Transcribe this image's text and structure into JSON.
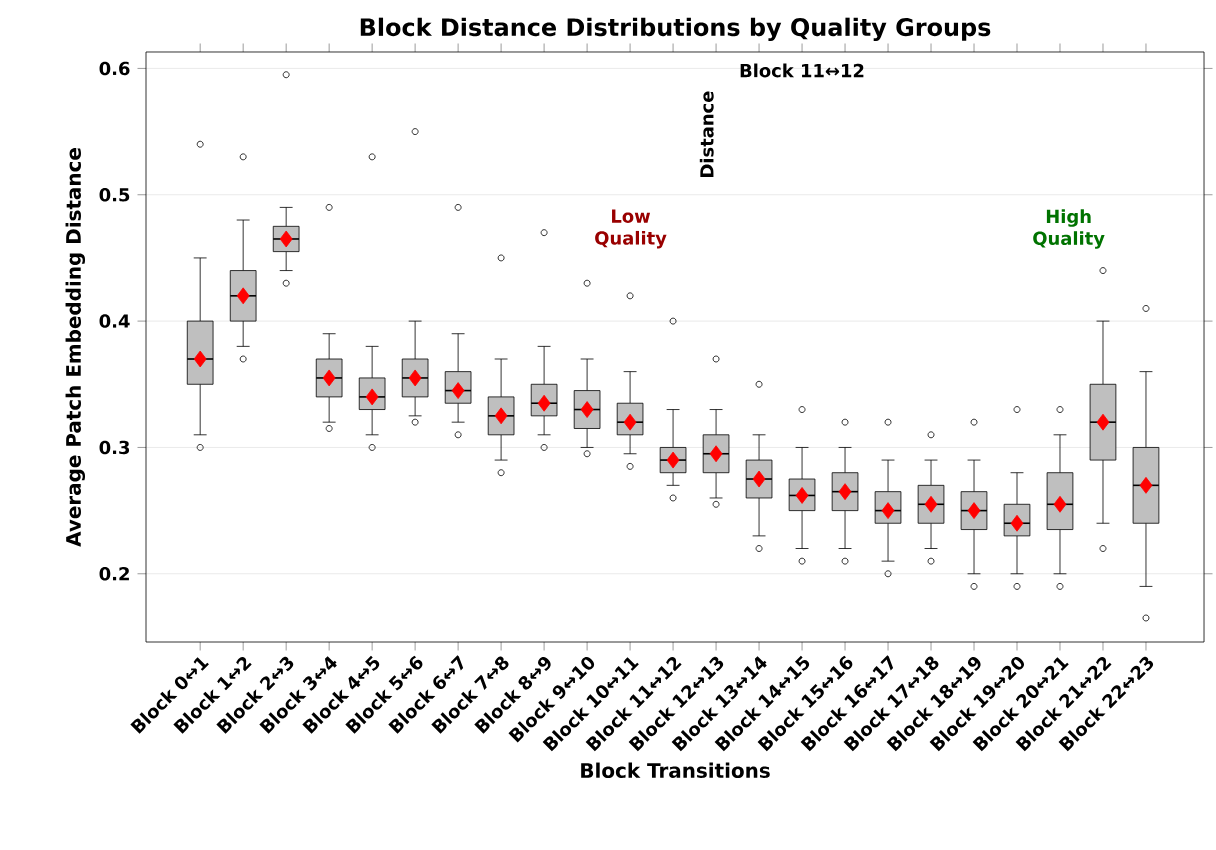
{
  "chart_data": {
    "type": "box",
    "title": "Block Distance Distributions by Quality Groups",
    "xlabel": "Block Transitions",
    "ylabel": "Average Patch Embedding Distance",
    "categories": [
      "Block 0↔1",
      "Block 1↔2",
      "Block 2↔3",
      "Block 3↔4",
      "Block 4↔5",
      "Block 5↔6",
      "Block 6↔7",
      "Block 7↔8",
      "Block 8↔9",
      "Block 9↔10",
      "Block 10↔11",
      "Block 11↔12",
      "Block 12↔13",
      "Block 13↔14",
      "Block 14↔15",
      "Block 15↔16",
      "Block 16↔17",
      "Block 17↔18",
      "Block 18↔19",
      "Block 19↔20",
      "Block 20↔21",
      "Block 21↔22",
      "Block 22↔23"
    ],
    "color": "#000000",
    "boxes": [
      {
        "low": 0.31,
        "q1": 0.35,
        "median": 0.37,
        "q3": 0.4,
        "high": 0.45,
        "mean": 0.37,
        "outliers": [
          0.54,
          0.3
        ]
      },
      {
        "low": 0.38,
        "q1": 0.4,
        "median": 0.42,
        "q3": 0.44,
        "high": 0.48,
        "mean": 0.42,
        "outliers": [
          0.53,
          0.37
        ]
      },
      {
        "low": 0.44,
        "q1": 0.455,
        "median": 0.465,
        "q3": 0.475,
        "high": 0.49,
        "mean": 0.465,
        "outliers": [
          0.595,
          0.43
        ]
      },
      {
        "low": 0.32,
        "q1": 0.34,
        "median": 0.355,
        "q3": 0.37,
        "high": 0.39,
        "mean": 0.355,
        "outliers": [
          0.49,
          0.315
        ]
      },
      {
        "low": 0.31,
        "q1": 0.33,
        "median": 0.34,
        "q3": 0.355,
        "high": 0.38,
        "mean": 0.34,
        "outliers": [
          0.53,
          0.3
        ]
      },
      {
        "low": 0.325,
        "q1": 0.34,
        "median": 0.355,
        "q3": 0.37,
        "high": 0.4,
        "mean": 0.355,
        "outliers": [
          0.55,
          0.32
        ]
      },
      {
        "low": 0.32,
        "q1": 0.335,
        "median": 0.345,
        "q3": 0.36,
        "high": 0.39,
        "mean": 0.345,
        "outliers": [
          0.49,
          0.31
        ]
      },
      {
        "low": 0.29,
        "q1": 0.31,
        "median": 0.325,
        "q3": 0.34,
        "high": 0.37,
        "mean": 0.325,
        "outliers": [
          0.45,
          0.28
        ]
      },
      {
        "low": 0.31,
        "q1": 0.325,
        "median": 0.335,
        "q3": 0.35,
        "high": 0.38,
        "mean": 0.335,
        "outliers": [
          0.47,
          0.3
        ]
      },
      {
        "low": 0.3,
        "q1": 0.315,
        "median": 0.33,
        "q3": 0.345,
        "high": 0.37,
        "mean": 0.33,
        "outliers": [
          0.43,
          0.295
        ]
      },
      {
        "low": 0.295,
        "q1": 0.31,
        "median": 0.32,
        "q3": 0.335,
        "high": 0.36,
        "mean": 0.32,
        "outliers": [
          0.42,
          0.285
        ]
      },
      {
        "low": 0.27,
        "q1": 0.28,
        "median": 0.29,
        "q3": 0.3,
        "high": 0.33,
        "mean": 0.29,
        "outliers": [
          0.4,
          0.26
        ]
      },
      {
        "low": 0.26,
        "q1": 0.28,
        "median": 0.295,
        "q3": 0.31,
        "high": 0.33,
        "mean": 0.295,
        "outliers": [
          0.37,
          0.255
        ]
      },
      {
        "low": 0.23,
        "q1": 0.26,
        "median": 0.275,
        "q3": 0.29,
        "high": 0.31,
        "mean": 0.275,
        "outliers": [
          0.35,
          0.22
        ]
      },
      {
        "low": 0.22,
        "q1": 0.25,
        "median": 0.262,
        "q3": 0.275,
        "high": 0.3,
        "mean": 0.262,
        "outliers": [
          0.33,
          0.21
        ]
      },
      {
        "low": 0.22,
        "q1": 0.25,
        "median": 0.265,
        "q3": 0.28,
        "high": 0.3,
        "mean": 0.265,
        "outliers": [
          0.32,
          0.21
        ]
      },
      {
        "low": 0.21,
        "q1": 0.24,
        "median": 0.25,
        "q3": 0.265,
        "high": 0.29,
        "mean": 0.25,
        "outliers": [
          0.32,
          0.2
        ]
      },
      {
        "low": 0.22,
        "q1": 0.24,
        "median": 0.255,
        "q3": 0.27,
        "high": 0.29,
        "mean": 0.255,
        "outliers": [
          0.31,
          0.21
        ]
      },
      {
        "low": 0.2,
        "q1": 0.235,
        "median": 0.25,
        "q3": 0.265,
        "high": 0.29,
        "mean": 0.25,
        "outliers": [
          0.32,
          0.19
        ]
      },
      {
        "low": 0.2,
        "q1": 0.23,
        "median": 0.24,
        "q3": 0.255,
        "high": 0.28,
        "mean": 0.24,
        "outliers": [
          0.33,
          0.19
        ]
      },
      {
        "low": 0.2,
        "q1": 0.235,
        "median": 0.255,
        "q3": 0.28,
        "high": 0.31,
        "mean": 0.255,
        "outliers": [
          0.33,
          0.19
        ]
      },
      {
        "low": 0.24,
        "q1": 0.29,
        "median": 0.32,
        "q3": 0.35,
        "high": 0.4,
        "mean": 0.32,
        "outliers": [
          0.44,
          0.22
        ]
      },
      {
        "low": 0.19,
        "q1": 0.24,
        "median": 0.27,
        "q3": 0.3,
        "high": 0.36,
        "mean": 0.27,
        "outliers": [
          0.41,
          0.165
        ]
      }
    ],
    "ylim": [
      0.146,
      0.613
    ],
    "yticks": [
      0.2,
      0.3,
      0.4,
      0.5,
      0.6
    ],
    "grid": "y",
    "annotations": [
      "Block 11↔12",
      "Distance",
      "Low Quality",
      "High Quality"
    ]
  }
}
